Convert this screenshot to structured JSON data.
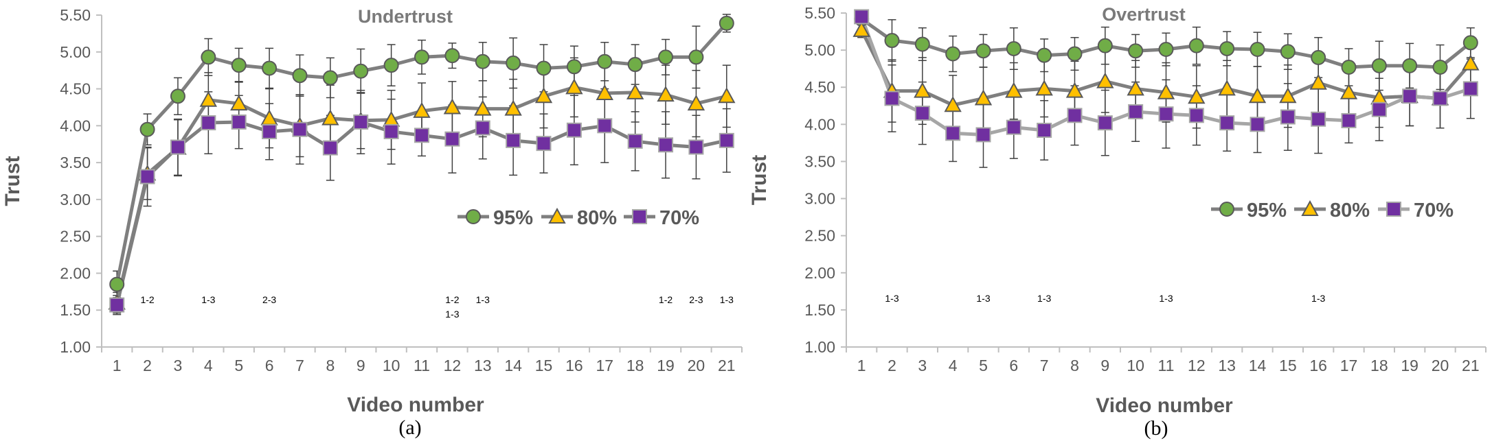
{
  "colors": {
    "s95_fill": "#70ad47",
    "s80_fill": "#ffc000",
    "s70_fill": "#7030a0",
    "line_dark": "#7f7f7f",
    "line_light": "#a6a6a6",
    "axis": "#bfbfbf",
    "error_bar": "#404040"
  },
  "chart_data": [
    {
      "type": "line",
      "panel": "a",
      "title": "Undertrust",
      "caption": "(a)",
      "xlabel": "Video number",
      "ylabel": "Trust",
      "ylim": [
        1.0,
        5.5
      ],
      "yticks": [
        "1.00",
        "1.50",
        "2.00",
        "2.50",
        "3.00",
        "3.50",
        "4.00",
        "4.50",
        "5.00",
        "5.50"
      ],
      "x": [
        "1",
        "2",
        "3",
        "4",
        "5",
        "6",
        "7",
        "8",
        "9",
        "10",
        "11",
        "12",
        "13",
        "14",
        "15",
        "16",
        "17",
        "18",
        "19",
        "20",
        "21"
      ],
      "legend_position": "right",
      "series": [
        {
          "name": "95%",
          "marker": "circle",
          "fill": "#70ad47",
          "line": "#7f7f7f",
          "values": [
            1.85,
            3.95,
            4.4,
            4.93,
            4.82,
            4.78,
            4.68,
            4.65,
            4.74,
            4.82,
            4.93,
            4.95,
            4.87,
            4.85,
            4.78,
            4.8,
            4.87,
            4.83,
            4.93,
            4.93,
            5.39
          ],
          "errors": [
            0.18,
            0.21,
            0.25,
            0.25,
            0.23,
            0.27,
            0.28,
            0.27,
            0.3,
            0.28,
            0.23,
            0.17,
            0.26,
            0.34,
            0.32,
            0.28,
            0.26,
            0.27,
            0.24,
            0.42,
            0.12
          ]
        },
        {
          "name": "80%",
          "marker": "triangle",
          "fill": "#ffc000",
          "line": "#7f7f7f",
          "values": [
            1.6,
            3.35,
            3.7,
            4.35,
            4.3,
            4.1,
            4.0,
            4.1,
            4.07,
            4.08,
            4.2,
            4.25,
            4.23,
            4.23,
            4.4,
            4.52,
            4.44,
            4.45,
            4.42,
            4.3,
            4.4
          ],
          "errors": [
            0.14,
            0.35,
            0.38,
            0.37,
            0.3,
            0.4,
            0.42,
            0.45,
            0.38,
            0.4,
            0.38,
            0.35,
            0.38,
            0.4,
            0.43,
            0.4,
            0.42,
            0.4,
            0.4,
            0.45,
            0.42
          ]
        },
        {
          "name": "70%",
          "marker": "square",
          "fill": "#7030a0",
          "line": "#7f7f7f",
          "values": [
            1.57,
            3.31,
            3.71,
            4.04,
            4.05,
            3.92,
            3.95,
            3.7,
            4.05,
            3.92,
            3.87,
            3.82,
            3.97,
            3.8,
            3.76,
            3.94,
            4.0,
            3.79,
            3.74,
            3.71,
            3.8
          ],
          "errors": [
            0.13,
            0.4,
            0.38,
            0.42,
            0.36,
            0.38,
            0.47,
            0.44,
            0.43,
            0.44,
            0.28,
            0.46,
            0.42,
            0.47,
            0.4,
            0.47,
            0.5,
            0.4,
            0.45,
            0.43,
            0.43
          ]
        }
      ],
      "annotations": [
        {
          "x": "2",
          "lines": [
            "1-2"
          ]
        },
        {
          "x": "4",
          "lines": [
            "1-3"
          ]
        },
        {
          "x": "6",
          "lines": [
            "2-3"
          ]
        },
        {
          "x": "12",
          "lines": [
            "1-2",
            "1-3"
          ]
        },
        {
          "x": "13",
          "lines": [
            "1-3"
          ]
        },
        {
          "x": "19",
          "lines": [
            "1-2"
          ]
        },
        {
          "x": "20",
          "lines": [
            "2-3"
          ]
        },
        {
          "x": "21",
          "lines": [
            "1-3"
          ]
        }
      ]
    },
    {
      "type": "line",
      "panel": "b",
      "title": "Overtrust",
      "caption": "(b)",
      "xlabel": "Video number",
      "ylabel": "Trust",
      "ylim": [
        1.0,
        5.5
      ],
      "yticks": [
        "1.00",
        "1.50",
        "2.00",
        "2.50",
        "3.00",
        "3.50",
        "4.00",
        "4.50",
        "5.00",
        "5.50"
      ],
      "x": [
        "1",
        "2",
        "3",
        "4",
        "5",
        "6",
        "7",
        "8",
        "9",
        "10",
        "11",
        "12",
        "13",
        "14",
        "15",
        "16",
        "17",
        "18",
        "19",
        "20",
        "21"
      ],
      "legend_position": "right",
      "series": [
        {
          "name": "95%",
          "marker": "circle",
          "fill": "#70ad47",
          "line": "#7f7f7f",
          "values": [
            5.42,
            5.13,
            5.08,
            4.95,
            4.99,
            5.02,
            4.93,
            4.95,
            5.06,
            4.99,
            5.01,
            5.06,
            5.02,
            5.01,
            4.98,
            4.9,
            4.77,
            4.79,
            4.79,
            4.77,
            5.1
          ],
          "errors": [
            0.08,
            0.28,
            0.22,
            0.24,
            0.22,
            0.28,
            0.22,
            0.22,
            0.25,
            0.22,
            0.22,
            0.25,
            0.23,
            0.23,
            0.24,
            0.27,
            0.25,
            0.33,
            0.3,
            0.3,
            0.2
          ]
        },
        {
          "name": "80%",
          "marker": "triangle",
          "fill": "#ffc000",
          "line": "#7f7f7f",
          "values": [
            5.27,
            4.45,
            4.45,
            4.26,
            4.35,
            4.45,
            4.48,
            4.45,
            4.58,
            4.48,
            4.43,
            4.37,
            4.48,
            4.38,
            4.38,
            4.56,
            4.43,
            4.36,
            4.38,
            4.35,
            4.82
          ],
          "errors": [
            0.1,
            0.42,
            0.45,
            0.4,
            0.42,
            0.38,
            0.38,
            0.4,
            0.42,
            0.38,
            0.4,
            0.42,
            0.38,
            0.4,
            0.42,
            0.4,
            0.38,
            0.4,
            0.4,
            0.4,
            0.32
          ]
        },
        {
          "name": "70%",
          "marker": "square",
          "fill": "#7030a0",
          "line": "#a6a6a6",
          "values": [
            5.45,
            4.35,
            4.15,
            3.88,
            3.86,
            3.96,
            3.92,
            4.12,
            4.02,
            4.17,
            4.14,
            4.12,
            4.02,
            4.0,
            4.1,
            4.07,
            4.05,
            4.2,
            4.38,
            4.35,
            4.48
          ],
          "errors": [
            0.08,
            0.45,
            0.42,
            0.38,
            0.44,
            0.42,
            0.4,
            0.4,
            0.44,
            0.4,
            0.46,
            0.4,
            0.38,
            0.38,
            0.45,
            0.46,
            0.3,
            0.42,
            0.4,
            0.4,
            0.4
          ]
        }
      ],
      "annotations": [
        {
          "x": "2",
          "lines": [
            "1-3"
          ]
        },
        {
          "x": "5",
          "lines": [
            "1-3"
          ]
        },
        {
          "x": "7",
          "lines": [
            "1-3"
          ]
        },
        {
          "x": "11",
          "lines": [
            "1-3"
          ]
        },
        {
          "x": "16",
          "lines": [
            "1-3"
          ]
        }
      ]
    }
  ]
}
